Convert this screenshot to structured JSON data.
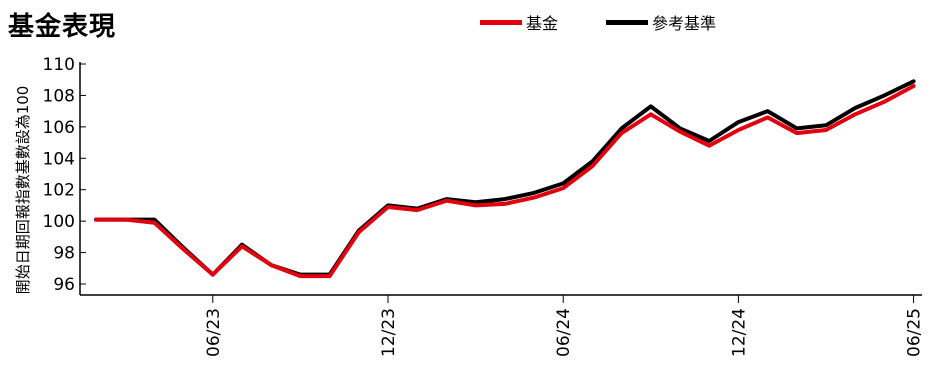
{
  "chart_data": {
    "type": "line",
    "title": "基金表現",
    "ylabel": "開始日期回報指數基數設為100",
    "ylim": [
      95,
      110
    ],
    "yticks": [
      96,
      98,
      100,
      102,
      104,
      106,
      108,
      110
    ],
    "xticks": [
      {
        "label": "06/23",
        "index": 4
      },
      {
        "label": "12/23",
        "index": 10
      },
      {
        "label": "06/24",
        "index": 16
      },
      {
        "label": "12/24",
        "index": 22
      },
      {
        "label": "06/25",
        "index": 28
      }
    ],
    "series": [
      {
        "name": "基金",
        "color": "#e3000f",
        "values": [
          100.1,
          100.1,
          99.9,
          98.2,
          96.6,
          98.4,
          97.2,
          96.5,
          96.5,
          99.3,
          100.9,
          100.7,
          101.3,
          101.0,
          101.1,
          101.5,
          102.1,
          103.5,
          105.6,
          106.8,
          105.7,
          104.8,
          105.8,
          106.6,
          105.6,
          105.8,
          106.8,
          107.6,
          108.6
        ]
      },
      {
        "name": "參考基準",
        "color": "#000000",
        "values": [
          100.1,
          100.1,
          100.1,
          98.3,
          96.6,
          98.5,
          97.2,
          96.6,
          96.6,
          99.4,
          101.0,
          100.8,
          101.4,
          101.2,
          101.4,
          101.8,
          102.4,
          103.8,
          105.9,
          107.3,
          105.9,
          105.1,
          106.3,
          107.0,
          105.9,
          106.1,
          107.2,
          108.0,
          108.9
        ]
      }
    ],
    "grid": false,
    "legend_position": "top"
  }
}
